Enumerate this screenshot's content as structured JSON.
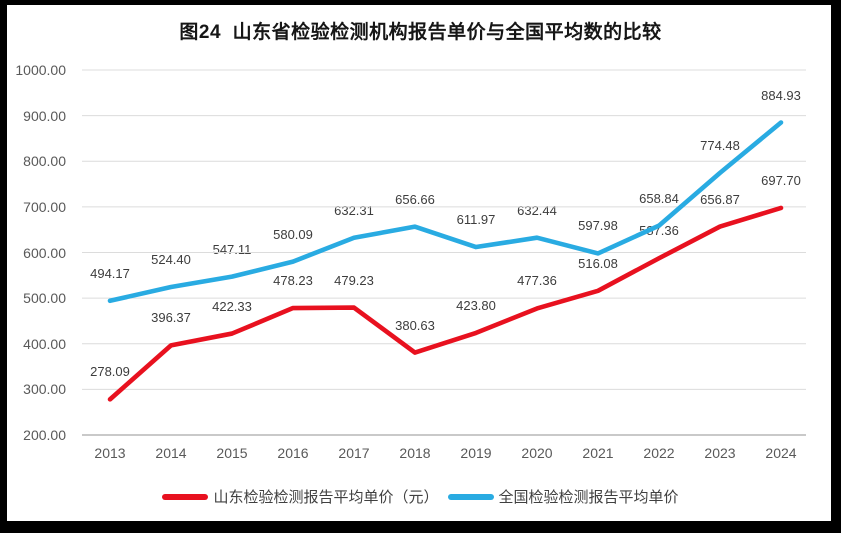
{
  "chart_data": {
    "type": "line",
    "title": "图24  山东省检验检测机构报告单价与全国平均数的比较",
    "categories": [
      "2013",
      "2014",
      "2015",
      "2016",
      "2017",
      "2018",
      "2019",
      "2020",
      "2021",
      "2022",
      "2023",
      "2024"
    ],
    "series": [
      {
        "name": "山东检验检测报告平均单价（元）",
        "color": "#e8111f",
        "values": [
          278.09,
          396.37,
          422.33,
          478.23,
          479.23,
          380.63,
          423.8,
          477.36,
          516.08,
          587.36,
          656.87,
          697.7
        ],
        "labels": [
          "278.09",
          "396.37",
          "422.33",
          "478.23",
          "479.23",
          "380.63",
          "423.80",
          "477.36",
          "516.08",
          "587.36",
          "656.87",
          "697.70"
        ]
      },
      {
        "name": "全国检验检测报告平均单价",
        "color": "#29abe2",
        "values": [
          494.17,
          524.4,
          547.11,
          580.09,
          632.31,
          656.66,
          611.97,
          632.44,
          597.98,
          658.84,
          774.48,
          884.93
        ],
        "labels": [
          "494.17",
          "524.40",
          "547.11",
          "580.09",
          "632.31",
          "656.66",
          "611.97",
          "632.44",
          "597.98",
          "658.84",
          "774.48",
          "884.93"
        ]
      }
    ],
    "ylim": [
      200,
      1000
    ],
    "ytick_step": 100,
    "yticks": [
      "200.00",
      "300.00",
      "400.00",
      "500.00",
      "600.00",
      "700.00",
      "800.00",
      "900.00",
      "1000.00"
    ],
    "grid": true,
    "data_labels": true,
    "legend_position": "bottom"
  },
  "colors": {
    "background": "#ffffff",
    "frame_border": "#000000",
    "grid": "#dcdcdc",
    "axis": "#b7b7b7",
    "tick_text": "#595959",
    "data_label_text": "#3d3d3d"
  }
}
